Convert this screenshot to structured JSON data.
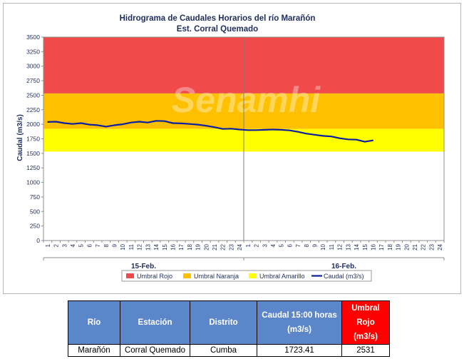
{
  "chart_data": {
    "type": "line",
    "title": "Hidrograma de Caudales Horarios del río Marañón",
    "subtitle": "Est. Corral Quemado",
    "ylabel": "Caudal  (m3/s)",
    "ylim": [
      0,
      3500
    ],
    "yticks": [
      0,
      250,
      500,
      750,
      1000,
      1250,
      1500,
      1750,
      2000,
      2250,
      2500,
      2750,
      3000,
      3250,
      3500
    ],
    "x_hour_labels": [
      "1",
      "2",
      "3",
      "4",
      "5",
      "6",
      "7",
      "8",
      "9",
      "10",
      "11",
      "12",
      "13",
      "14",
      "15",
      "16",
      "17",
      "18",
      "19",
      "20",
      "21",
      "22",
      "23",
      "24",
      "1",
      "2",
      "3",
      "4",
      "5",
      "6",
      "7",
      "8",
      "9",
      "10",
      "11",
      "12",
      "13",
      "14",
      "15",
      "16",
      "17",
      "18",
      "19",
      "20",
      "21",
      "22",
      "23",
      "24"
    ],
    "day_labels": [
      "15-Feb.",
      "16-Feb."
    ],
    "thresholds": [
      {
        "name": "Umbral Rojo",
        "from": 2531,
        "to": 3500,
        "color": "#f04a4a"
      },
      {
        "name": "Umbral Naranja",
        "from": 1920,
        "to": 2531,
        "color": "#ffc000"
      },
      {
        "name": "Umbral Amarillo",
        "from": 1530,
        "to": 1920,
        "color": "#ffff00"
      }
    ],
    "series": [
      {
        "name": "Caudal (m3/s)",
        "color": "#0a1fa0",
        "values": [
          2040,
          2045,
          2020,
          2005,
          2020,
          1995,
          1985,
          1960,
          1985,
          2000,
          2030,
          2045,
          2030,
          2060,
          2055,
          2020,
          2015,
          2005,
          1995,
          1975,
          1950,
          1920,
          1925,
          1910,
          1900,
          1900,
          1905,
          1910,
          1905,
          1895,
          1870,
          1840,
          1820,
          1800,
          1790,
          1760,
          1740,
          1735,
          1700,
          1723.41
        ]
      }
    ],
    "legend_position": "bottom",
    "watermark": "Senamhi"
  },
  "table": {
    "headers": [
      {
        "line1": "Río",
        "line2": ""
      },
      {
        "line1": "Estación",
        "line2": ""
      },
      {
        "line1": "Distrito",
        "line2": ""
      },
      {
        "line1": "Caudal 15:00 horas",
        "line2": "(m3/s)"
      },
      {
        "line1": "Umbral Rojo",
        "line2": "(m3/s)"
      }
    ],
    "row": [
      "Marañón",
      "Corral Quemado",
      "Cumba",
      "1723.41",
      "2531"
    ]
  }
}
